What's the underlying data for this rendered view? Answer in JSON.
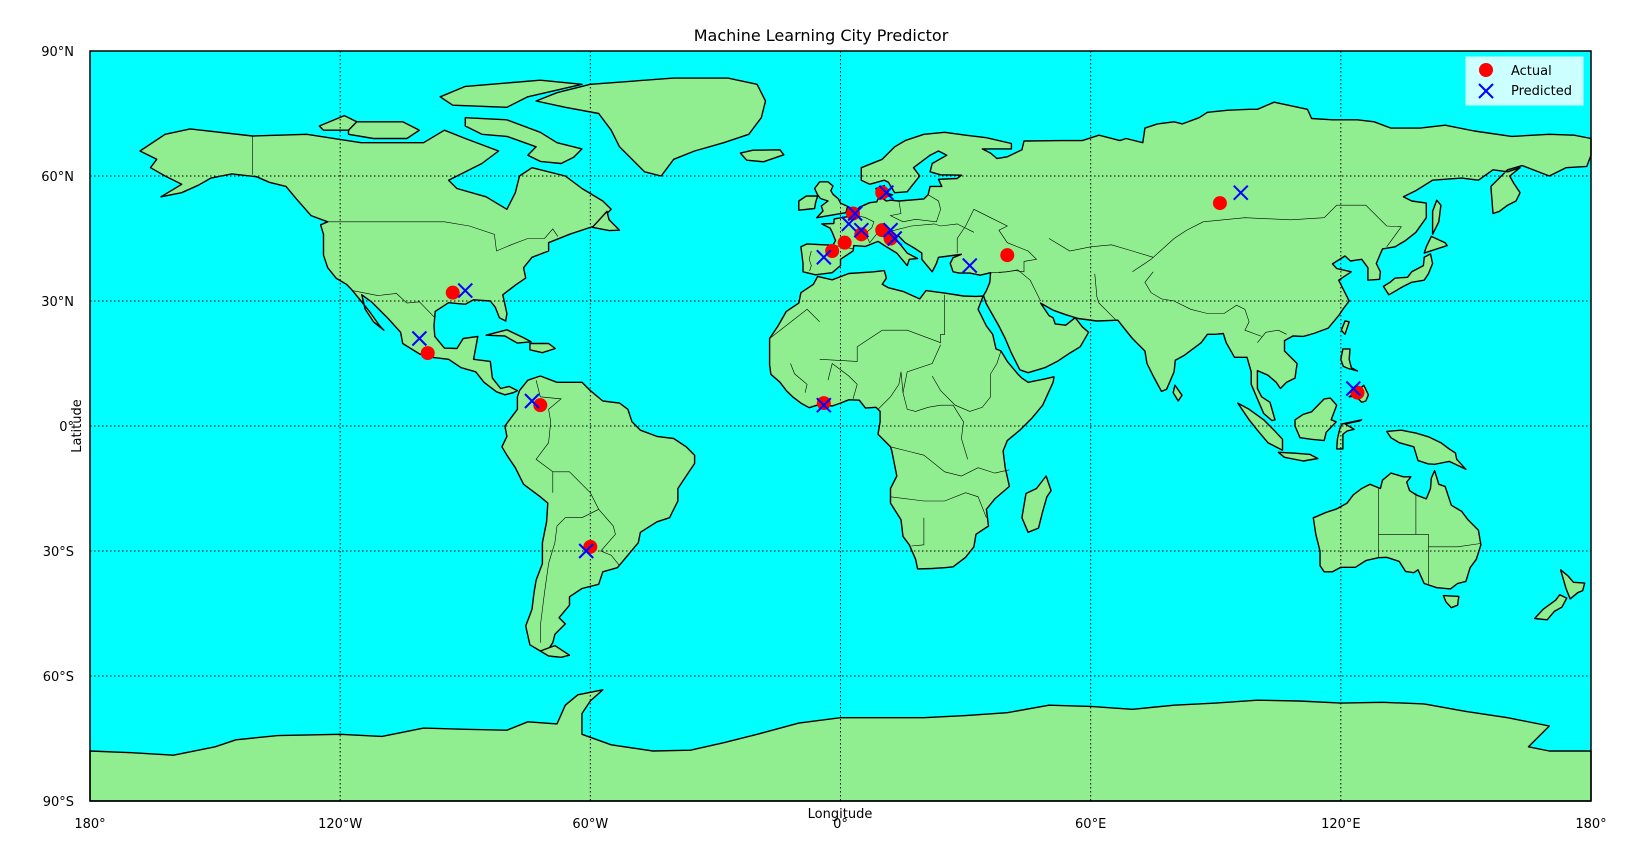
{
  "chart_data": {
    "type": "scatter",
    "title": "Machine Learning City Predictor",
    "xlabel": "Longitude",
    "ylabel": "Latitude",
    "xlim": [
      -180,
      180
    ],
    "ylim": [
      -90,
      90
    ],
    "projection": "equirectangular world map",
    "grid": true,
    "legend_position": "top-right",
    "x_ticks": [
      {
        "value": -180,
        "label": "180°"
      },
      {
        "value": -120,
        "label": "120°W"
      },
      {
        "value": -60,
        "label": "60°W"
      },
      {
        "value": 0,
        "label": "0°"
      },
      {
        "value": 60,
        "label": "60°E"
      },
      {
        "value": 120,
        "label": "120°E"
      },
      {
        "value": 180,
        "label": "180°"
      }
    ],
    "y_ticks": [
      {
        "value": 90,
        "label": "90°N"
      },
      {
        "value": 60,
        "label": "60°N"
      },
      {
        "value": 30,
        "label": "30°N"
      },
      {
        "value": 0,
        "label": "0°"
      },
      {
        "value": -30,
        "label": "30°S"
      },
      {
        "value": -60,
        "label": "60°S"
      },
      {
        "value": -90,
        "label": "90°S"
      }
    ],
    "colors": {
      "ocean": "#00ffff",
      "land": "#90ee90",
      "actual": "#ff0000",
      "predicted": "#0000ff"
    },
    "series": [
      {
        "name": "Actual",
        "marker": "circle",
        "points": [
          {
            "lon": -93,
            "lat": 32
          },
          {
            "lon": -99,
            "lat": 17.5
          },
          {
            "lon": -72,
            "lat": 5
          },
          {
            "lon": -60,
            "lat": -29
          },
          {
            "lon": -4,
            "lat": 5.5
          },
          {
            "lon": -2,
            "lat": 42
          },
          {
            "lon": 1,
            "lat": 44
          },
          {
            "lon": 3,
            "lat": 51
          },
          {
            "lon": 5,
            "lat": 46
          },
          {
            "lon": 10,
            "lat": 47
          },
          {
            "lon": 12,
            "lat": 45
          },
          {
            "lon": 10,
            "lat": 56
          },
          {
            "lon": 40,
            "lat": 41
          },
          {
            "lon": 91,
            "lat": 53.5
          },
          {
            "lon": 124,
            "lat": 8
          }
        ]
      },
      {
        "name": "Predicted",
        "marker": "x",
        "points": [
          {
            "lon": -90,
            "lat": 32.5
          },
          {
            "lon": -101,
            "lat": 21
          },
          {
            "lon": -74,
            "lat": 6
          },
          {
            "lon": -61,
            "lat": -30
          },
          {
            "lon": -4,
            "lat": 5
          },
          {
            "lon": -4,
            "lat": 40.5
          },
          {
            "lon": 2,
            "lat": 48.5
          },
          {
            "lon": 3.5,
            "lat": 51
          },
          {
            "lon": 5,
            "lat": 47
          },
          {
            "lon": 12,
            "lat": 47
          },
          {
            "lon": 13,
            "lat": 45
          },
          {
            "lon": 11,
            "lat": 56
          },
          {
            "lon": 31,
            "lat": 38.5
          },
          {
            "lon": 96,
            "lat": 56
          },
          {
            "lon": 123,
            "lat": 9
          }
        ]
      }
    ]
  }
}
